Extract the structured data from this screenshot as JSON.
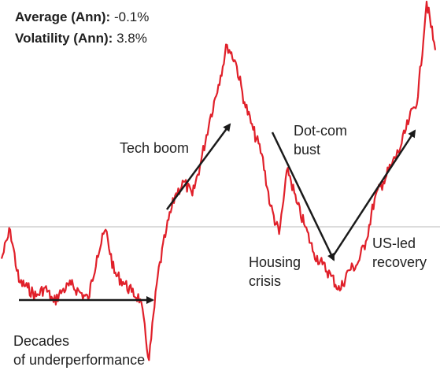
{
  "stats": {
    "average_label": "Average (Ann):",
    "average_value": "-0.1%",
    "volatility_label": "Volatility (Ann):",
    "volatility_value": "3.8%"
  },
  "chart_data": {
    "type": "line",
    "title": "",
    "xlabel": "",
    "ylabel": "",
    "baseline": 0,
    "ylim": [
      -1.0,
      1.0
    ],
    "line_color": "#e0202a",
    "baseline_color": "#c8c8c8",
    "x": [
      0,
      2,
      4,
      6,
      8,
      10,
      12,
      14,
      16,
      18,
      20,
      22,
      24,
      26,
      28,
      30,
      32,
      34,
      36,
      38,
      40,
      42,
      44,
      46,
      48,
      50,
      52,
      54,
      56,
      58,
      60,
      62,
      64,
      66,
      68,
      70,
      72,
      74,
      76,
      78,
      80,
      82,
      84,
      86,
      88,
      90,
      92,
      94,
      96,
      98,
      100
    ],
    "series": [
      {
        "values": [
          -0.22,
          -0.02,
          -0.38,
          -0.42,
          -0.48,
          -0.42,
          -0.52,
          -0.44,
          -0.4,
          -0.45,
          -0.5,
          -0.2,
          -0.02,
          -0.32,
          -0.38,
          -0.45,
          -0.5,
          -0.92,
          -0.34,
          -0.02,
          0.18,
          0.26,
          0.18,
          0.38,
          0.62,
          0.82,
          1.05,
          0.95,
          0.72,
          0.56,
          0.42,
          0.12,
          -0.05,
          0.34,
          0.14,
          0.0,
          -0.18,
          -0.26,
          -0.34,
          -0.44,
          -0.3,
          -0.26,
          -0.1,
          0.16,
          0.26,
          0.36,
          0.46,
          0.62,
          0.75,
          1.3,
          1.02
        ]
      }
    ],
    "annotations": [
      "Decades of underperformance",
      "Tech boom",
      "Dot-com bust",
      "Housing crisis",
      "US-led recovery"
    ]
  }
}
